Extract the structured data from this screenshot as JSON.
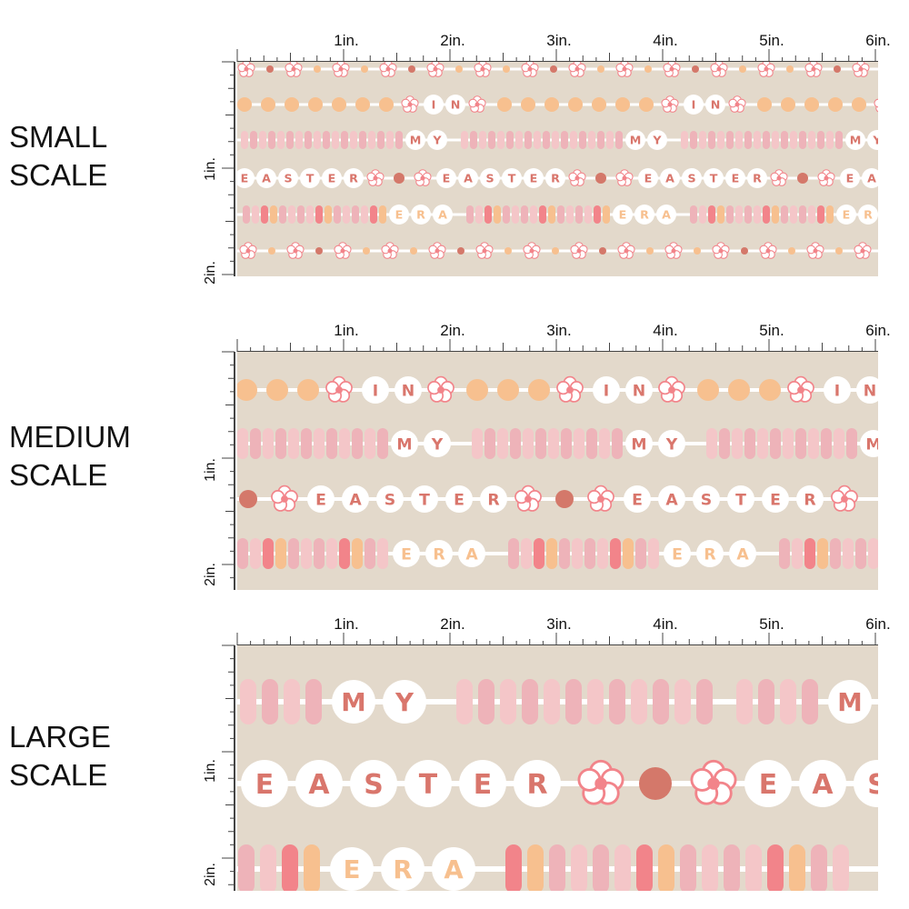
{
  "ruler": {
    "h_labels": [
      "1in.",
      "2in.",
      "3in.",
      "4in.",
      "5in.",
      "6in."
    ],
    "v_labels": [
      "1in.",
      "2in."
    ]
  },
  "colors": {
    "background": "#e3d9cb",
    "string": "#ffffff",
    "pink": "#eeb3b9",
    "light_pink": "#f4c6c8",
    "coral": "#f2848a",
    "peach": "#f7c08f",
    "rust": "#d4786a",
    "text": "#d9766c",
    "ruler": "#444444"
  },
  "panels": [
    {
      "id": "small",
      "label_line1": "SMALL",
      "label_line2": "SCALE",
      "rows": [
        [
          "flower",
          "dot",
          "flower",
          "dot",
          "flower",
          "dot",
          "flower",
          "dot",
          "flower",
          "dot",
          "flower",
          "dot",
          "flower",
          "dot",
          "flower",
          "dot",
          "flower",
          "dot",
          "flower",
          "dot",
          "flower",
          "dot",
          "flower",
          "dot",
          "flower",
          "dot",
          "flower",
          "dot",
          "flower",
          "dot",
          "flower",
          "dot",
          "flower",
          "dot",
          "flower"
        ],
        [
          "IN",
          "MY",
          "EASTER",
          "ERA"
        ]
      ]
    },
    {
      "id": "medium",
      "label_line1": "MEDIUM",
      "label_line2": "SCALE",
      "words": [
        "IN",
        "MY",
        "EASTER",
        "ERA"
      ]
    },
    {
      "id": "large",
      "label_line1": "LARGE",
      "label_line2": "SCALE",
      "words": [
        "MY",
        "EASTER",
        "ERA"
      ]
    }
  ]
}
